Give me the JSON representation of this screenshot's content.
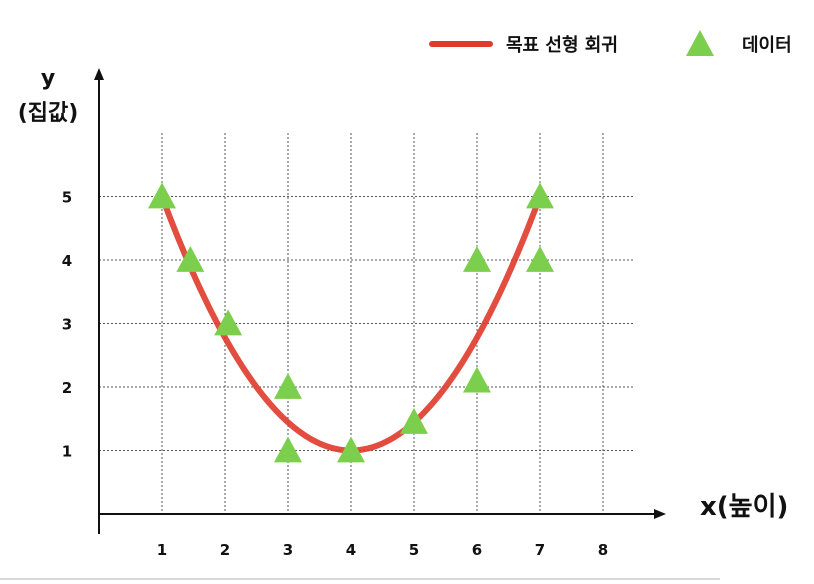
{
  "chart_data": {
    "type": "scatter",
    "title": "",
    "xlabel": "x(높이)",
    "ylabel_line1": "y",
    "ylabel_line2": "(집값)",
    "x_ticks": [
      1,
      2,
      3,
      4,
      5,
      6,
      7,
      8
    ],
    "y_ticks": [
      1,
      2,
      3,
      4,
      5
    ],
    "xlim": [
      0,
      8.5
    ],
    "ylim": [
      0,
      6.3
    ],
    "grid": true,
    "legend_position": "top-right",
    "series": [
      {
        "name": "목표 선형 회귀",
        "kind": "line",
        "color": "#e03a2a",
        "curve": "quadratic",
        "coefficients": {
          "a": 0.4444,
          "vertex_x": 4,
          "vertex_y": 1
        },
        "x_range": [
          1,
          7
        ]
      },
      {
        "name": "데이터",
        "kind": "scatter",
        "marker": "triangle",
        "color": "#7ccf4c",
        "points": [
          {
            "x": 1,
            "y": 5
          },
          {
            "x": 1.45,
            "y": 4
          },
          {
            "x": 2.05,
            "y": 3
          },
          {
            "x": 3,
            "y": 2
          },
          {
            "x": 3,
            "y": 1
          },
          {
            "x": 4,
            "y": 1
          },
          {
            "x": 5,
            "y": 1.45
          },
          {
            "x": 6,
            "y": 4
          },
          {
            "x": 6,
            "y": 2.1
          },
          {
            "x": 7,
            "y": 5
          },
          {
            "x": 7,
            "y": 4
          }
        ]
      }
    ]
  }
}
